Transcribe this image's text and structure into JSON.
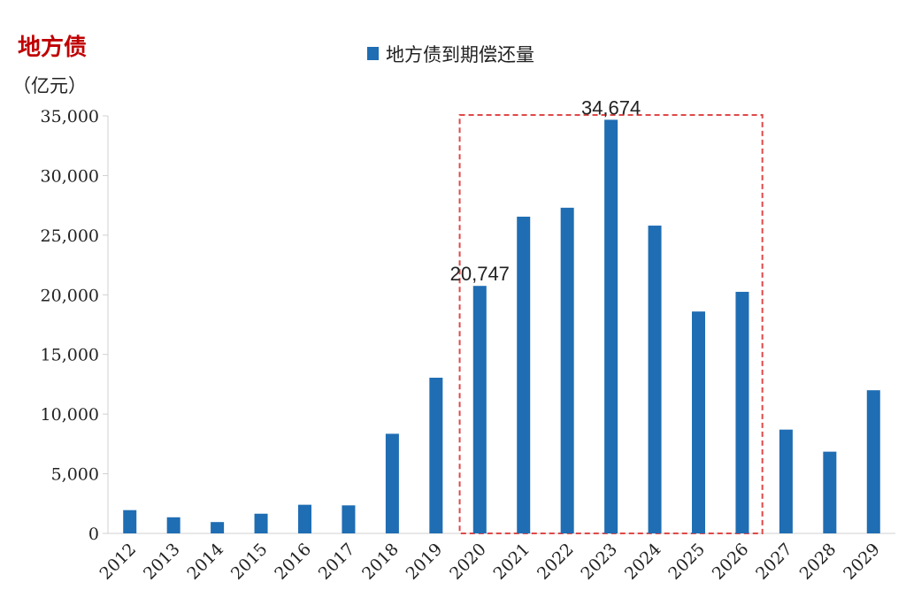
{
  "chart_data": {
    "type": "bar",
    "title": "地方债",
    "unit": "（亿元）",
    "legend": "地方债到期偿还量",
    "categories": [
      "2012",
      "2013",
      "2014",
      "2015",
      "2016",
      "2017",
      "2018",
      "2019",
      "2020",
      "2021",
      "2022",
      "2023",
      "2024",
      "2025",
      "2026",
      "2027",
      "2028",
      "2029"
    ],
    "values": [
      1950,
      1350,
      950,
      1650,
      2400,
      2350,
      8350,
      13050,
      20747,
      26550,
      27300,
      34674,
      25800,
      18600,
      20250,
      8700,
      6850,
      12000
    ],
    "data_labels": [
      {
        "category": "2020",
        "text": "20,747"
      },
      {
        "category": "2023",
        "text": "34,674"
      }
    ],
    "highlight_range": [
      "2020",
      "2026"
    ],
    "ylim": [
      0,
      35000
    ],
    "yticks": [
      "0",
      "5,000",
      "10,000",
      "15,000",
      "20,000",
      "25,000",
      "30,000",
      "35,000"
    ],
    "ytick_values": [
      0,
      5000,
      10000,
      15000,
      20000,
      25000,
      30000,
      35000
    ],
    "grid": false,
    "legend_position": "top-center",
    "colors": {
      "bar": "#1f6db3",
      "title": "#c00000",
      "highlight_box": "#e04848",
      "axis": "#d0d0d0",
      "text": "#222222"
    }
  }
}
